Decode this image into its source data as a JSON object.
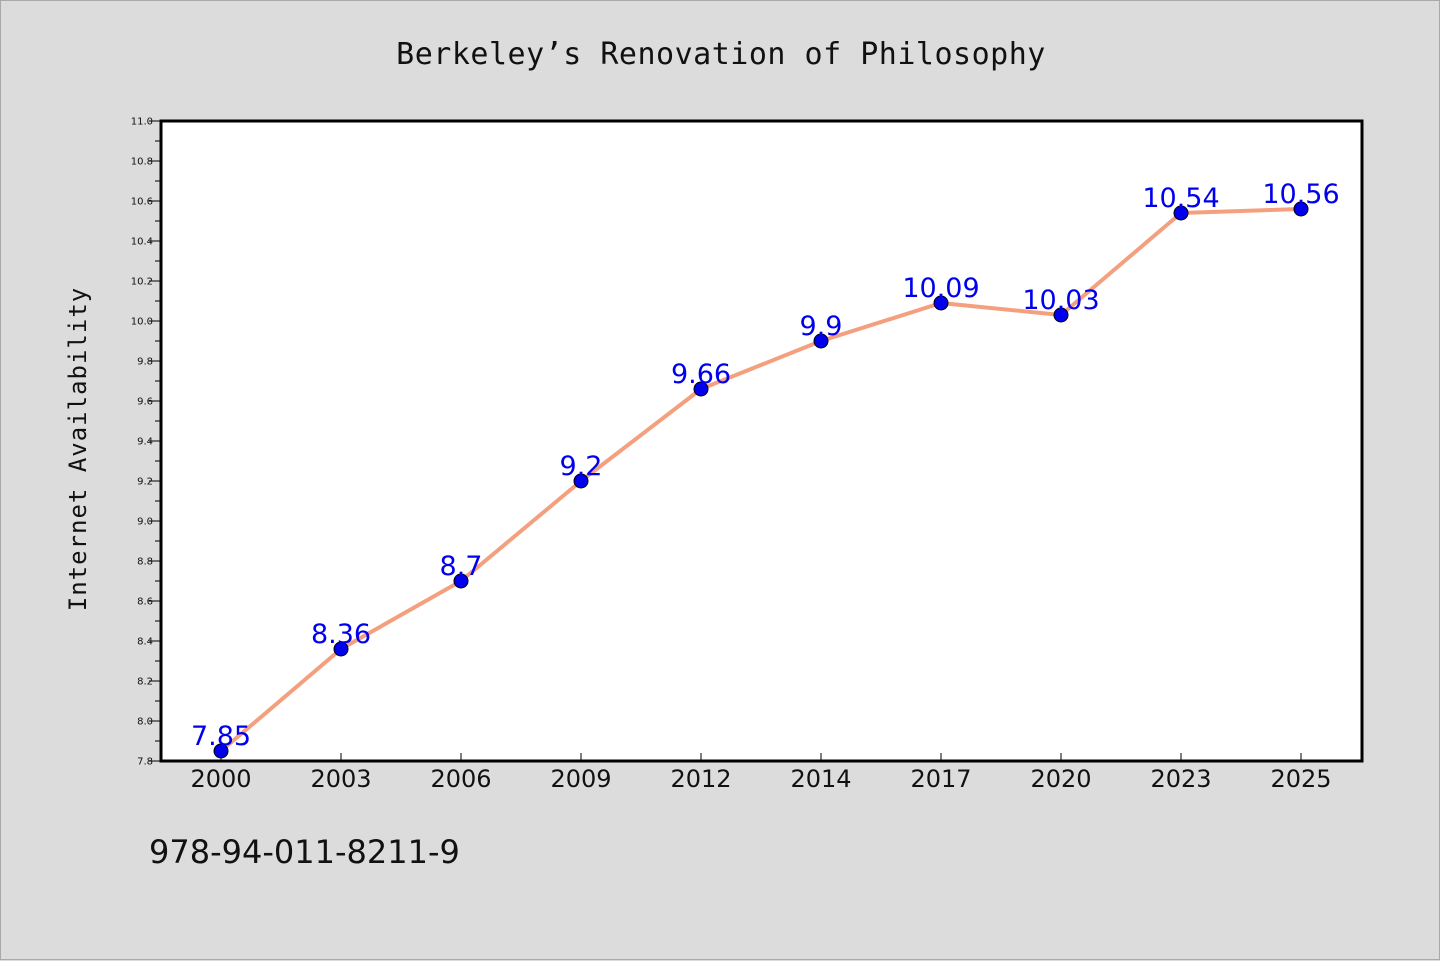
{
  "chart_data": {
    "type": "line",
    "title": "Berkeley’s Renovation of Philosophy",
    "xlabel": "",
    "ylabel": "Internet Availability",
    "categories": [
      "2000",
      "2003",
      "2006",
      "2009",
      "2012",
      "2014",
      "2017",
      "2020",
      "2023",
      "2025"
    ],
    "series": [
      {
        "values": [
          7.85,
          8.36,
          8.7,
          9.2,
          9.66,
          9.9,
          10.09,
          10.03,
          10.54,
          10.56
        ],
        "data_labels": [
          "7.85",
          "8.36",
          "8.7",
          "9.2",
          "9.66",
          "9.9",
          "10.09",
          "10.03",
          "10.54",
          "10.56"
        ],
        "line_color": "#f4a07e",
        "marker_color": "#0000ee"
      }
    ],
    "ylim": [
      7.8,
      11.0
    ],
    "y_ticks": [
      "7.8",
      "8.0",
      "8.2",
      "8.4",
      "8.6",
      "8.8",
      "9.0",
      "9.2",
      "9.4",
      "9.6",
      "9.8",
      "10.0",
      "10.2",
      "10.4",
      "10.6",
      "10.8",
      "11.0"
    ],
    "grid": false,
    "legend": "none",
    "label_color": "#0000ee"
  },
  "footer": {
    "code": "978-94-011-8211-9"
  }
}
